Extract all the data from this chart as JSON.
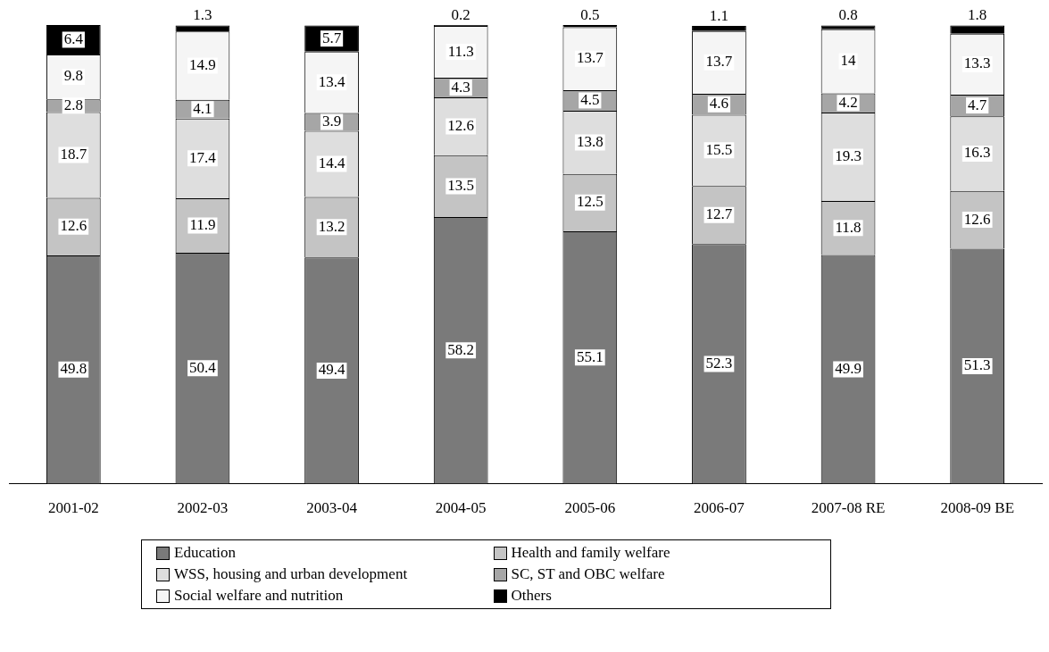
{
  "chart_data": {
    "type": "bar",
    "stacked": true,
    "data_labels": true,
    "legend": "bottom",
    "tick_labels": "x",
    "grid": false,
    "ylim": [
      0,
      100.5
    ],
    "categories": [
      "2001-02",
      "2002-03",
      "2003-04",
      "2004-05",
      "2005-06",
      "2006-07",
      "2007-08 RE",
      "2008-09 BE"
    ],
    "series": [
      {
        "name": "Education",
        "color": "#7a7a7a",
        "values": [
          49.8,
          50.4,
          49.4,
          58.2,
          55.1,
          52.3,
          49.9,
          51.3
        ]
      },
      {
        "name": "Health and family welfare",
        "color": "#c4c4c4",
        "values": [
          12.6,
          11.9,
          13.2,
          13.5,
          12.5,
          12.7,
          11.8,
          12.6
        ]
      },
      {
        "name": "WSS, housing and urban development",
        "color": "#dedede",
        "values": [
          18.7,
          17.4,
          14.4,
          12.6,
          13.8,
          15.5,
          19.3,
          16.3
        ]
      },
      {
        "name": "SC, ST and OBC welfare",
        "color": "#a6a6a6",
        "values": [
          2.8,
          4.1,
          3.9,
          4.3,
          4.5,
          4.6,
          4.2,
          4.7
        ]
      },
      {
        "name": "Social welfare and nutrition",
        "color": "#f5f5f5",
        "values": [
          9.8,
          14.9,
          13.4,
          11.3,
          13.7,
          13.7,
          14,
          13.3
        ]
      },
      {
        "name": "Others",
        "color": "#000000",
        "values": [
          6.4,
          1.3,
          5.7,
          0.2,
          0.5,
          1.1,
          0.8,
          1.8
        ]
      }
    ]
  }
}
